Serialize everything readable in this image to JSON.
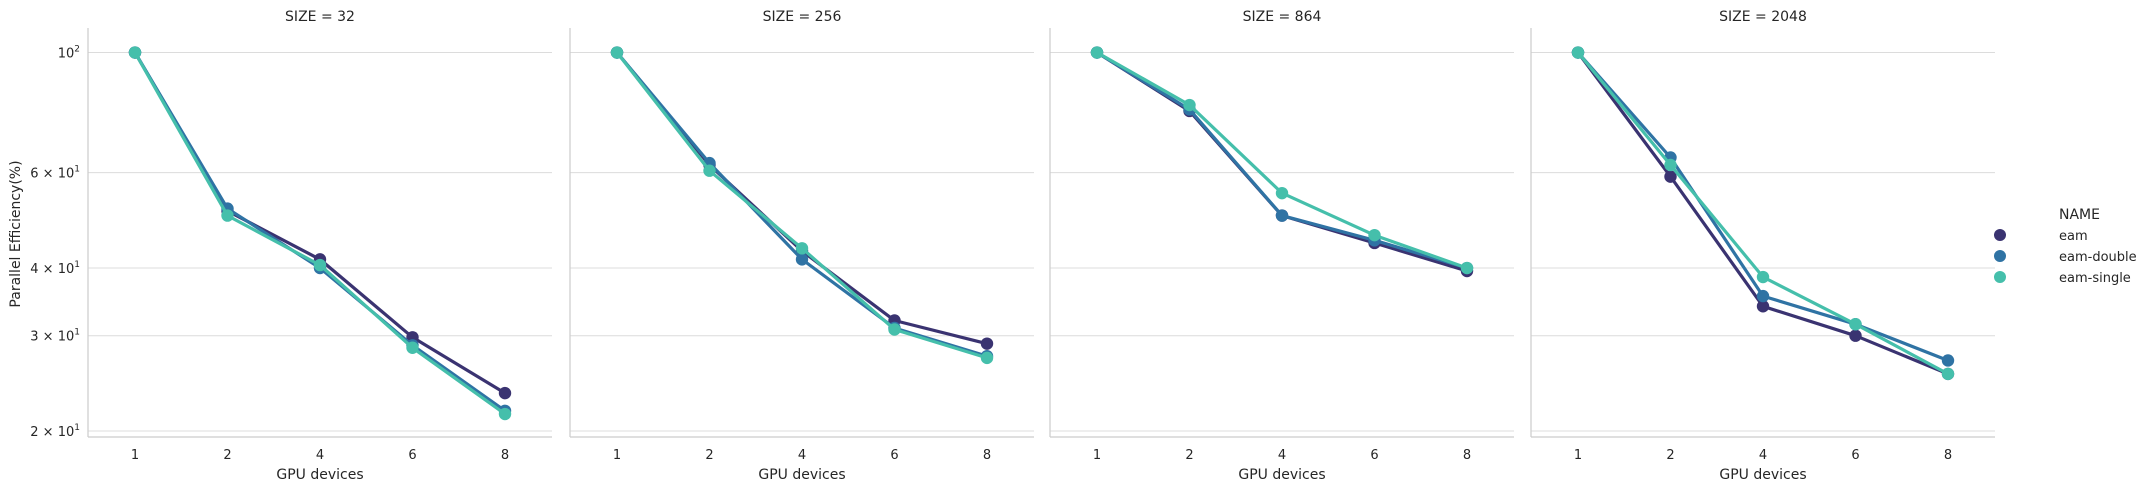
{
  "chart_data": {
    "type": "line",
    "title": "",
    "ylabel": "Parallel Efficiency(%)",
    "xlabel": "GPU devices",
    "yscale": "log",
    "ylim": [
      19.5,
      111
    ],
    "yticks": [
      {
        "value": 100,
        "base": "10",
        "exp": "2"
      },
      {
        "value": 60,
        "base": "6 × 10",
        "exp": "1"
      },
      {
        "value": 40,
        "base": "4 × 10",
        "exp": "1"
      },
      {
        "value": 30,
        "base": "3 × 10",
        "exp": "1"
      },
      {
        "value": 20,
        "base": "2 × 10",
        "exp": "1"
      }
    ],
    "categories": [
      "1",
      "2",
      "4",
      "6",
      "8"
    ],
    "grid": "horizontal",
    "legend": {
      "title": "NAME",
      "placement": "right",
      "entries": [
        {
          "name": "eam",
          "color": "#3a3371"
        },
        {
          "name": "eam-double",
          "color": "#2f73a4"
        },
        {
          "name": "eam-single",
          "color": "#45bfab"
        }
      ]
    },
    "panels": [
      {
        "title": "SIZE = 32",
        "series": [
          {
            "name": "eam",
            "values": [
              100,
              51,
              41.5,
              29.8,
              23.5
            ]
          },
          {
            "name": "eam-double",
            "values": [
              100,
              51.5,
              40,
              28.8,
              21.8
            ]
          },
          {
            "name": "eam-single",
            "values": [
              100,
              50,
              40.5,
              28.5,
              21.5
            ]
          }
        ]
      },
      {
        "title": "SIZE = 256",
        "series": [
          {
            "name": "eam",
            "values": [
              100,
              62,
              43,
              32,
              29
            ]
          },
          {
            "name": "eam-double",
            "values": [
              100,
              62.5,
              41.5,
              31,
              27.5
            ]
          },
          {
            "name": "eam-single",
            "values": [
              100,
              60.5,
              43.5,
              30.8,
              27.3
            ]
          }
        ]
      },
      {
        "title": "SIZE = 864",
        "series": [
          {
            "name": "eam",
            "values": [
              100,
              78,
              50,
              44.5,
              39.5
            ]
          },
          {
            "name": "eam-double",
            "values": [
              100,
              78.5,
              50,
              45,
              40
            ]
          },
          {
            "name": "eam-single",
            "values": [
              100,
              80,
              55,
              46,
              40
            ]
          }
        ]
      },
      {
        "title": "SIZE = 2048",
        "series": [
          {
            "name": "eam",
            "values": [
              100,
              59,
              34,
              30,
              25.5
            ]
          },
          {
            "name": "eam-double",
            "values": [
              100,
              64,
              35.5,
              31.5,
              27
            ]
          },
          {
            "name": "eam-single",
            "values": [
              100,
              62,
              38.5,
              31.5,
              25.5
            ]
          }
        ]
      }
    ]
  }
}
